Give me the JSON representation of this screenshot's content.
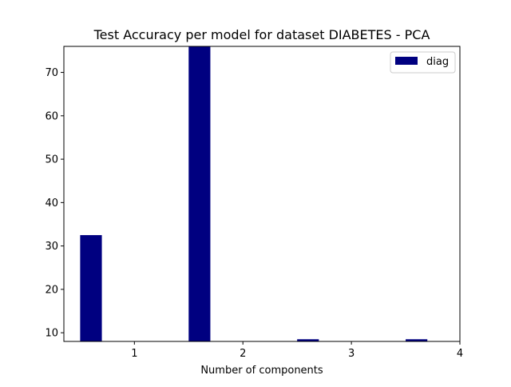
{
  "chart_data": {
    "type": "bar",
    "title": "Test Accuracy per model for dataset DIABETES - PCA",
    "xlabel": "Number of components",
    "ylabel": "",
    "x_ticks": [
      "1",
      "2",
      "3",
      "4"
    ],
    "y_ticks": [
      "10",
      "20",
      "30",
      "40",
      "50",
      "60",
      "70"
    ],
    "ylim": [
      8,
      76
    ],
    "xlim": [
      0.35,
      4.0
    ],
    "grid": false,
    "legend_position": "top-right",
    "series": [
      {
        "name": "diag",
        "color": "#000080",
        "x": [
          0.6,
          1.6,
          2.6,
          3.6
        ],
        "values": [
          32.5,
          76.0,
          8.5,
          8.5
        ]
      }
    ],
    "bar_width": 0.2
  }
}
